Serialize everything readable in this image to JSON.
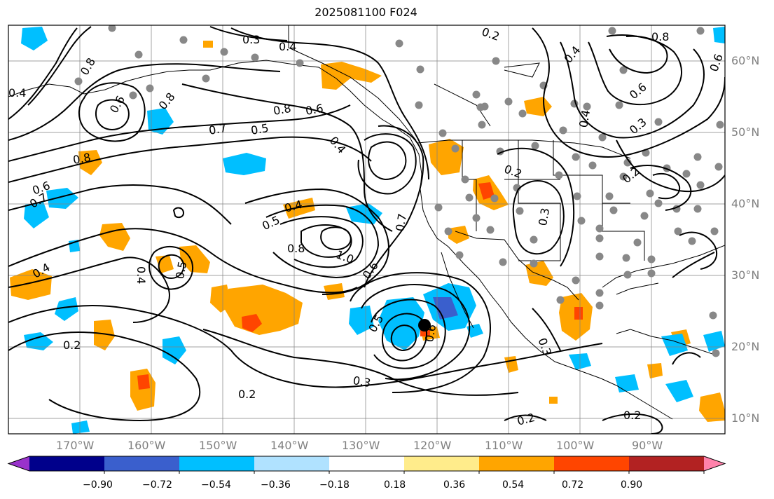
{
  "title": "2025081100 F024",
  "lon_labels": [
    "170°W",
    "160°W",
    "150°W",
    "140°W",
    "130°W",
    "120°W",
    "110°W",
    "100°W",
    "90°W"
  ],
  "lat_labels": [
    "60°N",
    "50°N",
    "40°N",
    "30°N",
    "20°N",
    "10°N"
  ],
  "contour_labels": [
    {
      "text": "0.3"
    },
    {
      "text": "0.4"
    },
    {
      "text": "0.2"
    },
    {
      "text": "0.8"
    },
    {
      "text": "0.6"
    },
    {
      "text": "0.8"
    },
    {
      "text": "0.7"
    },
    {
      "text": "0.5"
    },
    {
      "text": "0.8"
    },
    {
      "text": "0.6"
    },
    {
      "text": "0.4"
    },
    {
      "text": "0.8"
    },
    {
      "text": "0.6"
    },
    {
      "text": "0.7"
    },
    {
      "text": "0.4"
    },
    {
      "text": "0.5"
    },
    {
      "text": "0.8"
    },
    {
      "text": "1.0"
    },
    {
      "text": "0.6"
    },
    {
      "text": "0.7"
    },
    {
      "text": "0.4"
    },
    {
      "text": "0.5"
    },
    {
      "text": "0.4"
    },
    {
      "text": "0.2"
    },
    {
      "text": "0.5"
    },
    {
      "text": "0.3"
    },
    {
      "text": "0.2"
    },
    {
      "text": "0.2"
    },
    {
      "text": "0.2"
    },
    {
      "text": "0.3"
    },
    {
      "text": "0.8"
    },
    {
      "text": "0.6"
    },
    {
      "text": "0.6"
    },
    {
      "text": "0.3"
    },
    {
      "text": "0.4"
    },
    {
      "text": "0.2"
    },
    {
      "text": "0.2"
    },
    {
      "text": "0.4"
    },
    {
      "text": "0.4"
    },
    {
      "text": "0.3"
    },
    {
      "text": "0.6"
    }
  ],
  "colorbar": {
    "colors": [
      "#9932cc",
      "#00008b",
      "#3a5fcd",
      "#00bfff",
      "#b0e2ff",
      "#ffffff",
      "#ffec8b",
      "#ffa500",
      "#ff4500",
      "#b22222",
      "#ff82ab"
    ],
    "ticks": [
      "−0.90",
      "−0.72",
      "−0.54",
      "−0.36",
      "−0.18",
      "0.18",
      "0.36",
      "0.54",
      "0.72",
      "0.90"
    ]
  },
  "palette": {
    "blue": "#00bfff",
    "orange": "#ffa500",
    "red": "#ff4500",
    "dark_blue": "#3a5fcd",
    "station": "#888888",
    "grid": "#808080"
  }
}
